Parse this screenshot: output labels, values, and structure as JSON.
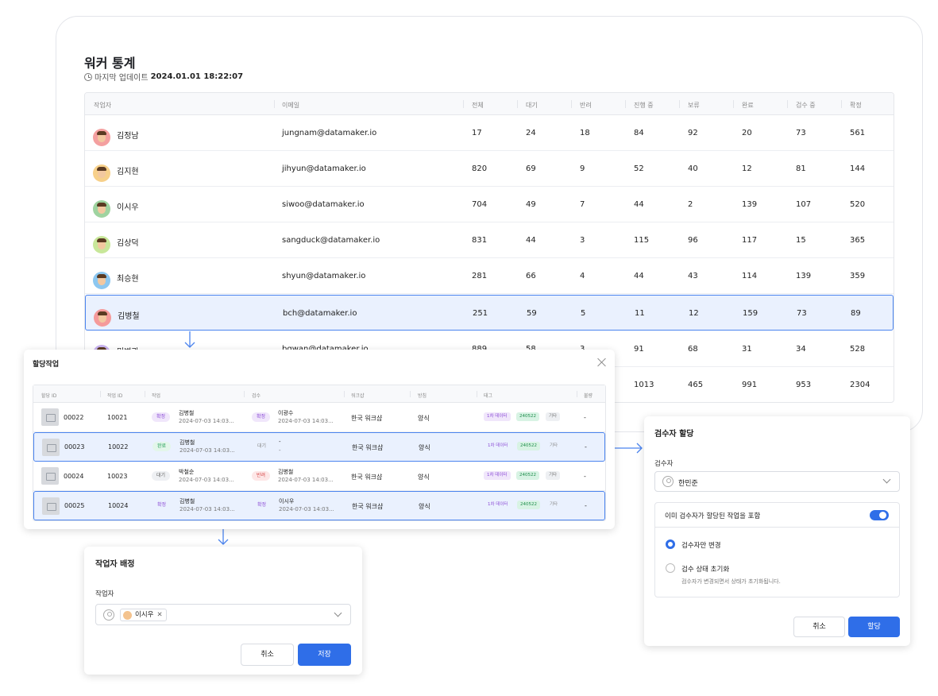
{
  "page": {
    "title": "워커 통계",
    "last_update_label": "마지막 업데이트",
    "last_update_value": "2024.01.01 18:22:07"
  },
  "stats_table": {
    "headers": [
      "작업자",
      "이메일",
      "전체",
      "대기",
      "반려",
      "진행 중",
      "보류",
      "완료",
      "검수 중",
      "확정"
    ],
    "rows": [
      {
        "name": "김정남",
        "email": "jungnam@datamaker.io",
        "vals": [
          "17",
          "24",
          "18",
          "84",
          "92",
          "20",
          "73",
          "561"
        ]
      },
      {
        "name": "김지현",
        "email": "jihyun@datamaker.io",
        "vals": [
          "820",
          "69",
          "9",
          "52",
          "40",
          "12",
          "81",
          "144"
        ]
      },
      {
        "name": "이시우",
        "email": "siwoo@datamaker.io",
        "vals": [
          "704",
          "49",
          "7",
          "44",
          "2",
          "139",
          "107",
          "520"
        ]
      },
      {
        "name": "김상덕",
        "email": "sangduck@datamaker.io",
        "vals": [
          "831",
          "44",
          "3",
          "115",
          "96",
          "117",
          "15",
          "365"
        ]
      },
      {
        "name": "최승현",
        "email": "shyun@datamaker.io",
        "vals": [
          "281",
          "66",
          "4",
          "44",
          "43",
          "114",
          "139",
          "359"
        ]
      },
      {
        "name": "김병철",
        "email": "bch@datamaker.io",
        "vals": [
          "251",
          "59",
          "5",
          "11",
          "12",
          "159",
          "73",
          "89"
        ]
      },
      {
        "name": "민병관",
        "email": "bgwan@datamaker.io",
        "vals": [
          "889",
          "58",
          "3",
          "91",
          "68",
          "31",
          "34",
          "528"
        ]
      },
      {
        "name": "",
        "email": "",
        "vals": [
          "",
          "",
          "",
          "1013",
          "465",
          "991",
          "953",
          "2304"
        ]
      }
    ]
  },
  "assign_modal": {
    "title": "할당작업",
    "headers": [
      "할당 ID",
      "작업 ID",
      "작업",
      "검수",
      "워크샵",
      "방침",
      "태그",
      "불량"
    ],
    "rows": [
      {
        "assign_id": "00022",
        "task_id": "10021",
        "task_status": "확정",
        "task_name": "김병철",
        "task_date": "2024-07-03 14:03...",
        "review_status": "확정",
        "review_name": "이광수",
        "review_date": "2024-07-03 14:03...",
        "workshop": "한국 워크샵",
        "policy": "양식",
        "tags": [
          "1차 데이터",
          "240522",
          "기타"
        ],
        "defect": "-"
      },
      {
        "assign_id": "00023",
        "task_id": "10022",
        "task_status": "완료",
        "task_name": "김병철",
        "task_date": "2024-07-03 14:03...",
        "review_status": "대기",
        "review_name": "-",
        "review_date": "-",
        "workshop": "한국 워크샵",
        "policy": "양식",
        "tags": [
          "1차 데이터",
          "240522",
          "기타"
        ],
        "defect": "-"
      },
      {
        "assign_id": "00024",
        "task_id": "10023",
        "task_status": "대기",
        "task_name": "박철순",
        "task_date": "2024-07-03 14:03...",
        "review_status": "반려",
        "review_name": "김병철",
        "review_date": "2024-07-03 14:03...",
        "workshop": "한국 워크샵",
        "policy": "양식",
        "tags": [
          "1차 데이터",
          "240522",
          "기타"
        ],
        "defect": "-"
      },
      {
        "assign_id": "00025",
        "task_id": "10024",
        "task_status": "확정",
        "task_name": "김병철",
        "task_date": "2024-07-03 14:03...",
        "review_status": "확정",
        "review_name": "이시우",
        "review_date": "2024-07-03 14:03...",
        "workshop": "한국 워크샵",
        "policy": "양식",
        "tags": [
          "1차 데이터",
          "240522",
          "기타"
        ],
        "defect": "-"
      }
    ]
  },
  "worker_dialog": {
    "title": "작업자 배정",
    "field_label": "작업자",
    "selected_token": "이시우",
    "remove_glyph": "✕",
    "cancel_label": "취소",
    "save_label": "저장"
  },
  "inspector_dialog": {
    "title": "검수자 할당",
    "field_label": "검수자",
    "selected_value": "한민준",
    "include_label": "이미 검수자가 할당된 작업을 포함",
    "include_on": true,
    "option_change_only": "검수자만 변경",
    "option_reset": "검수 상태 초기화",
    "option_reset_hint": "검수자가 변경되면서 상태가 초기화됩니다.",
    "cancel_label": "취소",
    "assign_label": "할당"
  },
  "colors": {
    "accent": "#2f6ee8",
    "selected_row_bg": "#eaf1fe",
    "selected_row_border": "#4b84ef"
  }
}
